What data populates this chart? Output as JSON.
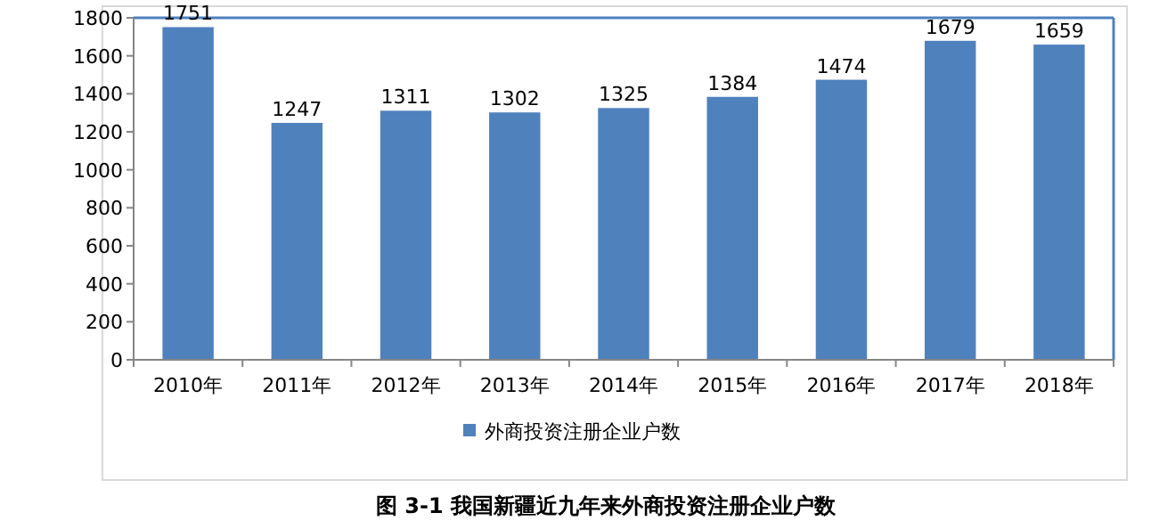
{
  "chart_data": {
    "type": "bar",
    "title": "图 3-1 我国新疆近九年来外商投资注册企业户数",
    "categories": [
      "2010年",
      "2011年",
      "2012年",
      "2013年",
      "2014年",
      "2015年",
      "2016年",
      "2017年",
      "2018年"
    ],
    "series": [
      {
        "name": "外商投资注册企业户数",
        "color": "#4f81bd",
        "values": [
          1751,
          1247,
          1311,
          1302,
          1325,
          1384,
          1474,
          1679,
          1659
        ]
      }
    ],
    "ylim": [
      0,
      1800
    ],
    "yticks": [
      0,
      200,
      400,
      600,
      800,
      1000,
      1200,
      1400,
      1600,
      1800
    ],
    "data_labels": true,
    "legend": "bottom",
    "grid": false
  }
}
